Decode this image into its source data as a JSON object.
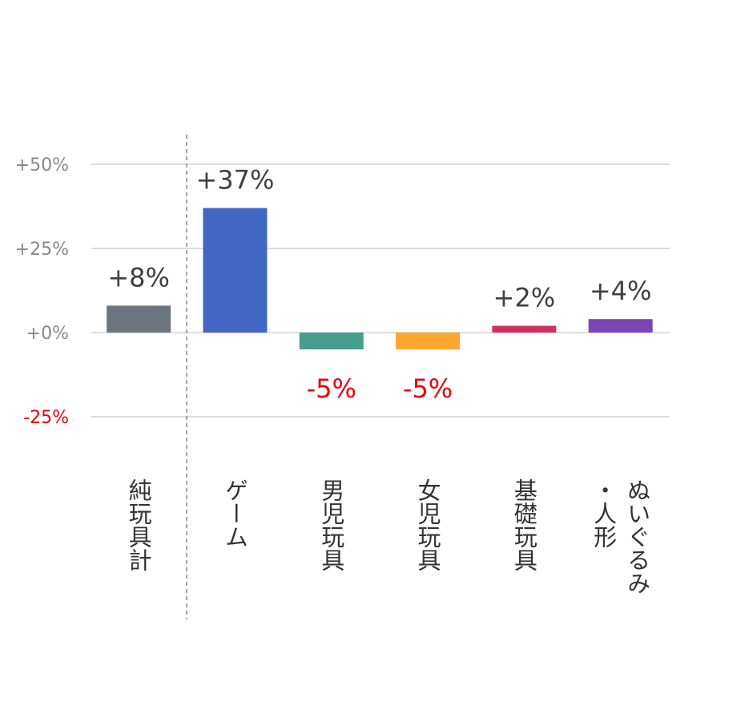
{
  "chart_data": {
    "type": "bar",
    "categories": [
      {
        "label": "純玩具計",
        "columns": [
          "純玩具計"
        ]
      },
      {
        "label": "ゲーム",
        "columns": [
          "ゲーム"
        ]
      },
      {
        "label": "男児玩具",
        "columns": [
          "男児玩具"
        ]
      },
      {
        "label": "女児玩具",
        "columns": [
          "女児玩具"
        ]
      },
      {
        "label": "基礎玩具",
        "columns": [
          "基礎玩具"
        ]
      },
      {
        "label": "ぬいぐるみ・人形",
        "columns": [
          "ぬいぐるみ",
          "・人形"
        ]
      }
    ],
    "values": [
      8,
      37,
      -5,
      -5,
      2,
      4
    ],
    "data_labels": [
      "+8%",
      "+37%",
      "-5%",
      "-5%",
      "+2%",
      "+4%"
    ],
    "colors": [
      "#6c757d",
      "#4267c2",
      "#479d8e",
      "#ffa630",
      "#d0305f",
      "#7b46b1"
    ],
    "y_ticks": [
      {
        "value": 50,
        "label": "+50%"
      },
      {
        "value": 25,
        "label": "+25%"
      },
      {
        "value": 0,
        "label": "+0%"
      },
      {
        "value": -25,
        "label": "-25%"
      }
    ],
    "ylim": [
      -25,
      50
    ],
    "grid": true,
    "negative_color": "#e8000b",
    "title": "",
    "xlabel": "",
    "ylabel": ""
  }
}
